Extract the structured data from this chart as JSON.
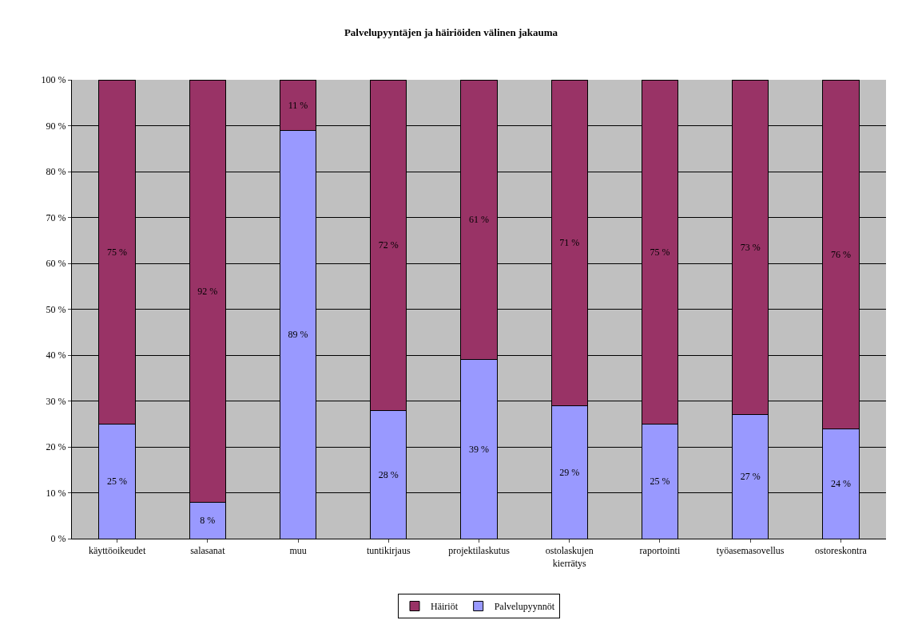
{
  "chart_data": {
    "type": "bar",
    "title": "Palvelupyyntäjen ja häiriöiden välinen jakauma",
    "stacked": true,
    "categories": [
      "käyttöoikeudet",
      "salasanat",
      "muu",
      "tuntikirjaus",
      "projektilaskutus",
      "ostolaskujen kierrätys",
      "raportointi",
      "työasemasovellus",
      "ostoreskontra"
    ],
    "series": [
      {
        "name": "Palvelupyynnöt",
        "color": "#9999ff",
        "values": [
          25,
          8,
          89,
          28,
          39,
          29,
          25,
          27,
          24
        ],
        "value_labels": [
          "25 %",
          "8 %",
          "89 %",
          "28 %",
          "39 %",
          "29 %",
          "25 %",
          "27 %",
          "24 %"
        ]
      },
      {
        "name": "Häiriöt",
        "color": "#993366",
        "values": [
          75,
          92,
          11,
          72,
          61,
          71,
          75,
          73,
          76
        ],
        "value_labels": [
          "75 %",
          "92 %",
          "11 %",
          "72 %",
          "61 %",
          "71 %",
          "75 %",
          "73 %",
          "76 %"
        ]
      }
    ],
    "ylim": [
      0,
      100
    ],
    "yticks": [
      {
        "value": 0,
        "label": "0 %"
      },
      {
        "value": 10,
        "label": "10 %"
      },
      {
        "value": 20,
        "label": "20 %"
      },
      {
        "value": 30,
        "label": "30 %"
      },
      {
        "value": 40,
        "label": "40 %"
      },
      {
        "value": 50,
        "label": "50 %"
      },
      {
        "value": 60,
        "label": "60 %"
      },
      {
        "value": 70,
        "label": "70 %"
      },
      {
        "value": 80,
        "label": "80 %"
      },
      {
        "value": 90,
        "label": "90 %"
      },
      {
        "value": 100,
        "label": "100 %"
      }
    ],
    "grid": "y",
    "legend": "bottom"
  }
}
